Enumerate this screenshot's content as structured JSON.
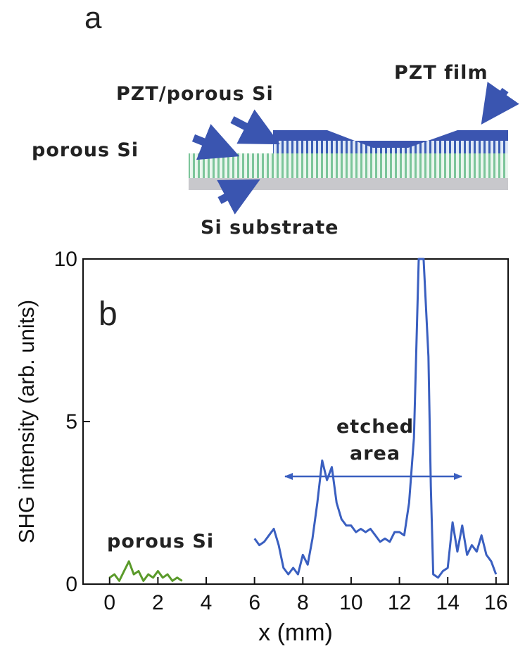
{
  "diagram": {
    "panel": "a",
    "labels": {
      "pzt_film": "PZT film",
      "pzt_porous": "PZT/porous Si",
      "porous": "porous Si",
      "substrate": "Si substrate"
    }
  },
  "chart_data": {
    "type": "line",
    "panel": "b",
    "x_label": "x (mm)",
    "y_label": "SHG intensity (arb. units)",
    "annotations": {
      "etched_1": "etched",
      "etched_2": "area",
      "porous": "porous Si"
    },
    "xlim": [
      -1.1,
      16.5
    ],
    "ylim": [
      0,
      10
    ],
    "xticks": [
      0,
      2,
      4,
      6,
      8,
      10,
      12,
      14,
      16
    ],
    "yticks": [
      0,
      5,
      10
    ],
    "series": [
      {
        "color": "#5a9a2a",
        "x": [
          0,
          0.2,
          0.4,
          0.6,
          0.8,
          1.0,
          1.2,
          1.4,
          1.6,
          1.8,
          2.0,
          2.2,
          2.4,
          2.6,
          2.8,
          3.0
        ],
        "values": [
          0.2,
          0.3,
          0.1,
          0.4,
          0.7,
          0.3,
          0.4,
          0.1,
          0.3,
          0.2,
          0.4,
          0.2,
          0.3,
          0.1,
          0.2,
          0.1
        ]
      },
      {
        "color": "#3a5fc0",
        "x": [
          6,
          6.2,
          6.4,
          6.6,
          6.8,
          7.0,
          7.2,
          7.4,
          7.6,
          7.8,
          8.0,
          8.2,
          8.4,
          8.6,
          8.8,
          9.0,
          9.2,
          9.4,
          9.6,
          9.8,
          10.0,
          10.2,
          10.4,
          10.6,
          10.8,
          11.0,
          11.2,
          11.4,
          11.6,
          11.8,
          12.0,
          12.2,
          12.4,
          12.6,
          12.8,
          13.0,
          13.2,
          13.3,
          13.4,
          13.6,
          13.8,
          14.0,
          14.2,
          14.4,
          14.6,
          14.8,
          15.0,
          15.2,
          15.4,
          15.6,
          15.8,
          16.0
        ],
        "values": [
          1.4,
          1.2,
          1.3,
          1.5,
          1.7,
          1.2,
          0.5,
          0.3,
          0.5,
          0.3,
          0.9,
          0.6,
          1.4,
          2.5,
          3.8,
          3.2,
          3.6,
          2.5,
          2.0,
          1.8,
          1.8,
          1.6,
          1.7,
          1.6,
          1.7,
          1.5,
          1.3,
          1.4,
          1.3,
          1.6,
          1.6,
          1.5,
          2.5,
          4.5,
          10.0,
          10.0,
          7.0,
          3.0,
          0.3,
          0.2,
          0.4,
          0.5,
          1.9,
          1.0,
          1.8,
          0.9,
          1.2,
          1.0,
          1.5,
          0.9,
          0.7,
          0.3
        ]
      }
    ]
  }
}
